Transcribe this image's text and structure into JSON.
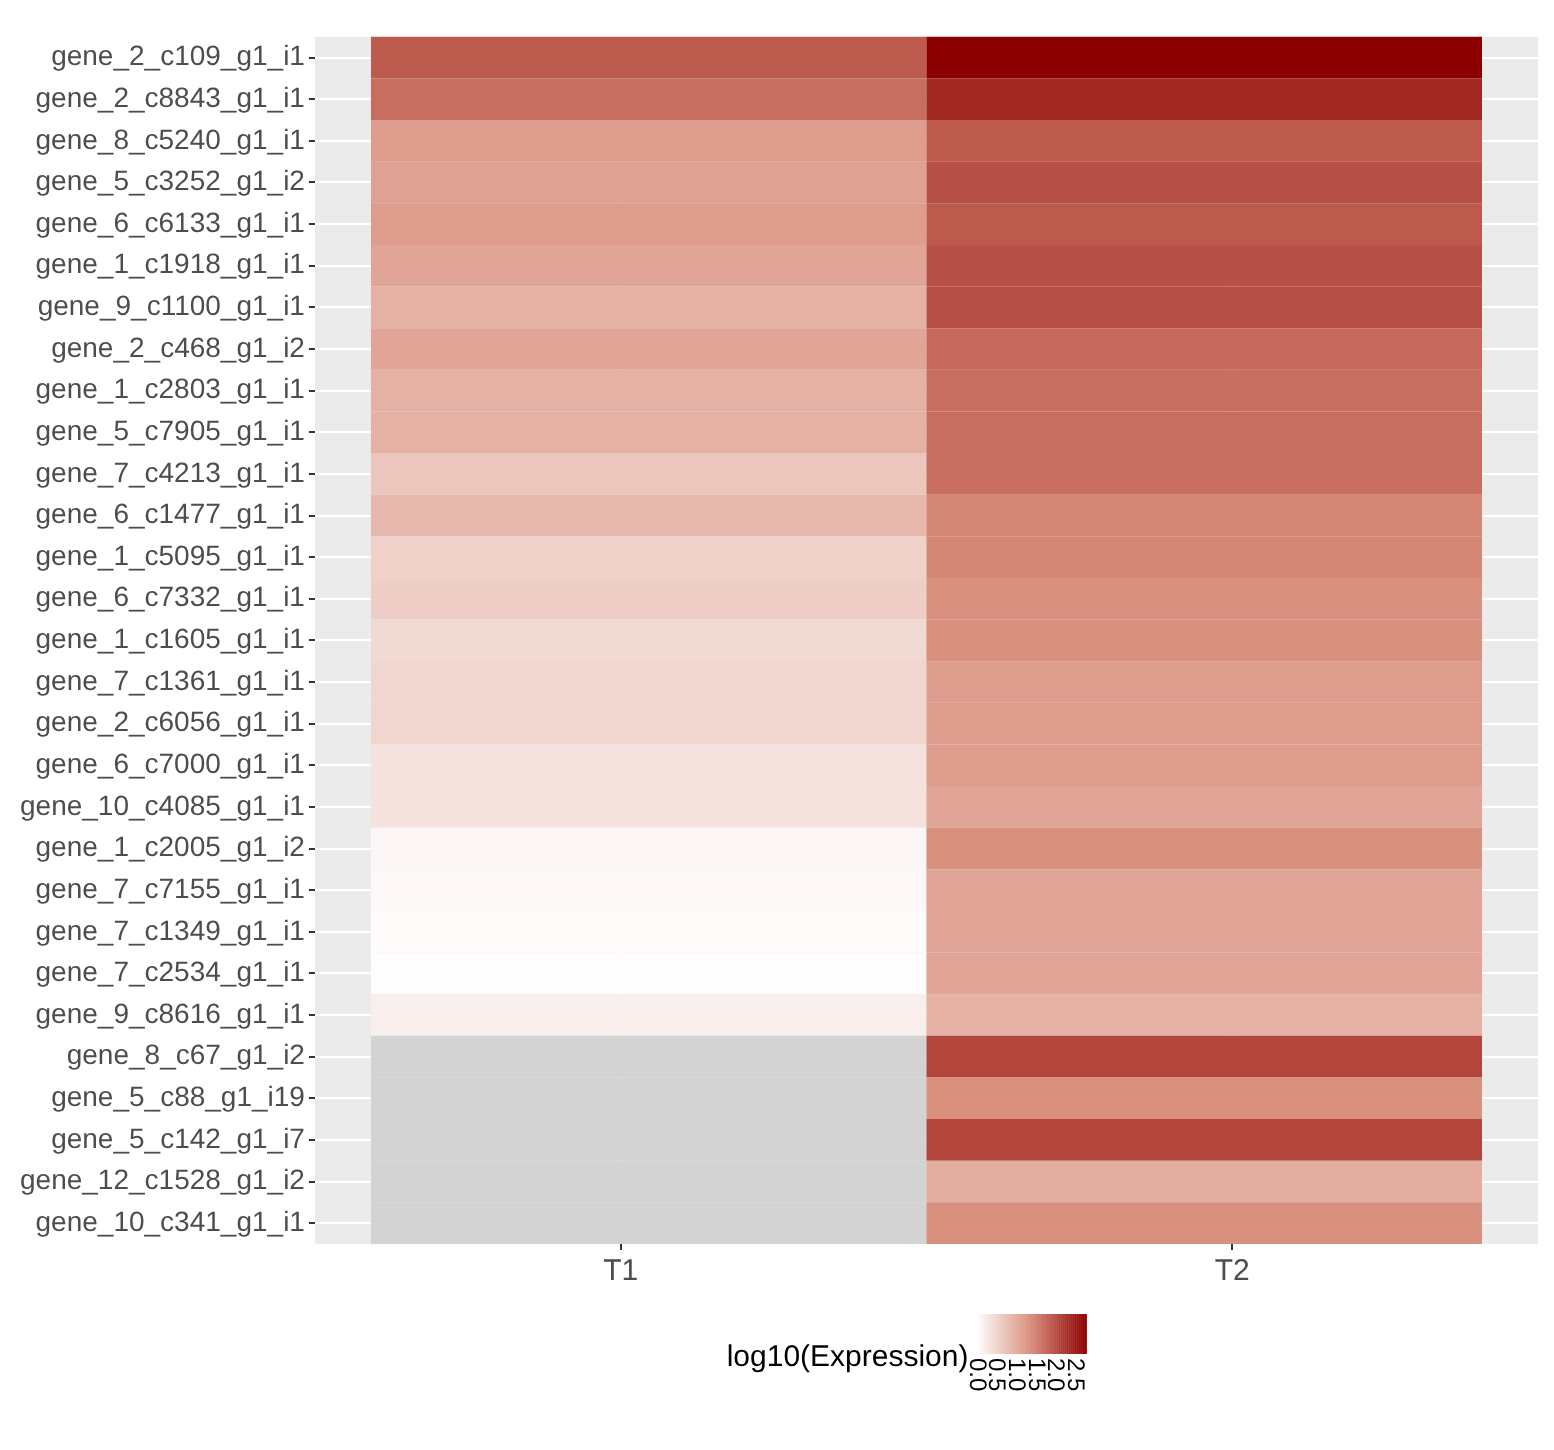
{
  "chart_data": {
    "type": "heatmap",
    "clabel": "log10(Expression)",
    "categories": [
      "T1",
      "T2"
    ],
    "y_categories": [
      "gene_2_c109_g1_i1",
      "gene_2_c8843_g1_i1",
      "gene_8_c5240_g1_i1",
      "gene_5_c3252_g1_i2",
      "gene_6_c6133_g1_i1",
      "gene_1_c1918_g1_i1",
      "gene_9_c1100_g1_i1",
      "gene_2_c468_g1_i2",
      "gene_1_c2803_g1_i1",
      "gene_5_c7905_g1_i1",
      "gene_7_c4213_g1_i1",
      "gene_6_c1477_g1_i1",
      "gene_1_c5095_g1_i1",
      "gene_6_c7332_g1_i1",
      "gene_1_c1605_g1_i1",
      "gene_7_c1361_g1_i1",
      "gene_2_c6056_g1_i1",
      "gene_6_c7000_g1_i1",
      "gene_10_c4085_g1_i1",
      "gene_1_c2005_g1_i2",
      "gene_7_c7155_g1_i1",
      "gene_7_c1349_g1_i1",
      "gene_7_c2534_g1_i1",
      "gene_9_c8616_g1_i1",
      "gene_8_c67_g1_i2",
      "gene_5_c88_g1_i19",
      "gene_5_c142_g1_i7",
      "gene_12_c1528_g1_i2",
      "gene_10_c341_g1_i1"
    ],
    "cells": [
      [
        1.9,
        2.8
      ],
      [
        1.7,
        2.4
      ],
      [
        1.2,
        1.9
      ],
      [
        1.15,
        2.0
      ],
      [
        1.2,
        1.9
      ],
      [
        1.1,
        2.0
      ],
      [
        0.95,
        2.0
      ],
      [
        1.1,
        1.75
      ],
      [
        0.95,
        1.7
      ],
      [
        0.95,
        1.7
      ],
      [
        0.7,
        1.7
      ],
      [
        0.85,
        1.45
      ],
      [
        0.55,
        1.45
      ],
      [
        0.6,
        1.35
      ],
      [
        0.45,
        1.35
      ],
      [
        0.5,
        1.2
      ],
      [
        0.5,
        1.2
      ],
      [
        0.35,
        1.2
      ],
      [
        0.35,
        1.1
      ],
      [
        0.1,
        1.35
      ],
      [
        0.08,
        1.1
      ],
      [
        0.05,
        1.1
      ],
      [
        0.02,
        1.1
      ],
      [
        0.2,
        0.95
      ],
      [
        null,
        2.1
      ],
      [
        null,
        1.35
      ],
      [
        null,
        2.1
      ],
      [
        null,
        1.0
      ],
      [
        null,
        1.35
      ]
    ],
    "clim": [
      0,
      2.8
    ],
    "cticks": [
      {
        "value": 0,
        "label": "0.0"
      },
      {
        "value": 0.5,
        "label": "0.5"
      },
      {
        "value": 1,
        "label": "1.0"
      },
      {
        "value": 1.5,
        "label": "1.5"
      },
      {
        "value": 2,
        "label": "2.0"
      },
      {
        "value": 2.5,
        "label": "2.5"
      }
    ],
    "grid": true
  }
}
